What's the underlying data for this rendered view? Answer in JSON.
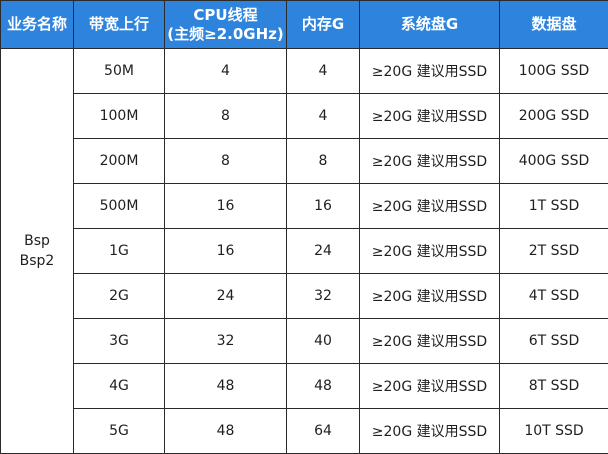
{
  "headers": {
    "business_name": "业务名称",
    "bandwidth": "带宽上行",
    "cpu_line1": "CPU线程",
    "cpu_line2": "(主频≥2.0GHz)",
    "memory": "内存G",
    "system_disk": "系统盘G",
    "data_disk": "数据盘"
  },
  "service": {
    "line1": "Bsp",
    "line2": "Bsp2"
  },
  "rows": [
    {
      "bandwidth": "50M",
      "cpu": "4",
      "memory": "4",
      "system_disk": "≥20G 建议用SSD",
      "data_disk": "100G SSD"
    },
    {
      "bandwidth": "100M",
      "cpu": "8",
      "memory": "4",
      "system_disk": "≥20G 建议用SSD",
      "data_disk": "200G SSD"
    },
    {
      "bandwidth": "200M",
      "cpu": "8",
      "memory": "8",
      "system_disk": "≥20G 建议用SSD",
      "data_disk": "400G SSD"
    },
    {
      "bandwidth": "500M",
      "cpu": "16",
      "memory": "16",
      "system_disk": "≥20G 建议用SSD",
      "data_disk": "1T SSD"
    },
    {
      "bandwidth": "1G",
      "cpu": "16",
      "memory": "24",
      "system_disk": "≥20G 建议用SSD",
      "data_disk": "2T SSD"
    },
    {
      "bandwidth": "2G",
      "cpu": "24",
      "memory": "32",
      "system_disk": "≥20G 建议用SSD",
      "data_disk": "4T SSD"
    },
    {
      "bandwidth": "3G",
      "cpu": "32",
      "memory": "40",
      "system_disk": "≥20G 建议用SSD",
      "data_disk": "6T SSD"
    },
    {
      "bandwidth": "4G",
      "cpu": "48",
      "memory": "48",
      "system_disk": "≥20G 建议用SSD",
      "data_disk": "8T SSD"
    },
    {
      "bandwidth": "5G",
      "cpu": "48",
      "memory": "64",
      "system_disk": "≥20G 建议用SSD",
      "data_disk": "10T SSD"
    }
  ],
  "colors": {
    "header_background": "#2e83dd",
    "header_text": "#ffffff",
    "cell_text": "#1f1f1f",
    "border": "#2b2b2b"
  }
}
